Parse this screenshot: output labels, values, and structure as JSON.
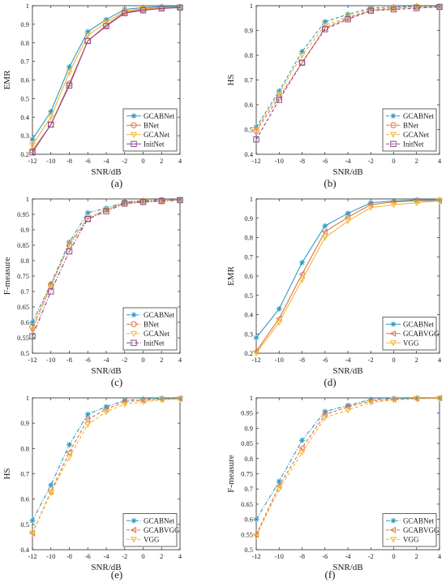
{
  "colors": {
    "GCABNet": "#2a9bc0",
    "BNet": "#e06f4a",
    "GCANet": "#f2b634",
    "InitNet": "#8a4a8e",
    "GCABVGG": "#e06f4a",
    "VGG": "#f2b634"
  },
  "chart_data": [
    {
      "type": "line",
      "panel_label": "(a)",
      "xlabel": "SNR/dB",
      "ylabel": "EMR",
      "xlim": [
        -12,
        4
      ],
      "ylim": [
        0.2,
        1.0
      ],
      "xticks": [
        -12,
        -10,
        -8,
        -6,
        -4,
        -2,
        0,
        2,
        4
      ],
      "yticks": [
        0.2,
        0.3,
        0.4,
        0.5,
        0.6,
        0.7,
        0.8,
        0.9,
        1
      ],
      "x": [
        -12,
        -10,
        -8,
        -6,
        -4,
        -2,
        0,
        2,
        4
      ],
      "legend_position": "bottom-right",
      "series": [
        {
          "name": "GCABNet",
          "marker": "star",
          "dash": "solid",
          "values": [
            0.28,
            0.43,
            0.67,
            0.86,
            0.925,
            0.98,
            0.99,
            0.995,
            0.995
          ]
        },
        {
          "name": "BNet",
          "marker": "circle",
          "dash": "solid",
          "values": [
            0.22,
            0.36,
            0.58,
            0.81,
            0.895,
            0.965,
            0.98,
            0.99,
            0.99
          ]
        },
        {
          "name": "GCANet",
          "marker": "triangle-down",
          "dash": "solid",
          "values": [
            0.25,
            0.4,
            0.64,
            0.84,
            0.91,
            0.97,
            0.985,
            0.99,
            0.99
          ]
        },
        {
          "name": "InitNet",
          "marker": "square",
          "dash": "solid",
          "values": [
            0.21,
            0.36,
            0.57,
            0.81,
            0.89,
            0.96,
            0.975,
            0.985,
            0.99
          ]
        }
      ]
    },
    {
      "type": "line",
      "panel_label": "(b)",
      "xlabel": "SNR/dB",
      "ylabel": "HS",
      "xlim": [
        -12,
        4
      ],
      "ylim": [
        0.4,
        1.0
      ],
      "xticks": [
        -12,
        -10,
        -8,
        -6,
        -4,
        -2,
        0,
        2,
        4
      ],
      "yticks": [
        0.4,
        0.5,
        0.6,
        0.7,
        0.8,
        0.9,
        1
      ],
      "x": [
        -12,
        -10,
        -8,
        -6,
        -4,
        -2,
        0,
        2,
        4
      ],
      "legend_position": "bottom-right",
      "series": [
        {
          "name": "GCABNet",
          "marker": "star",
          "dash": "dash",
          "values": [
            0.51,
            0.655,
            0.815,
            0.935,
            0.965,
            0.99,
            0.995,
            0.998,
            0.998
          ]
        },
        {
          "name": "BNet",
          "marker": "circle",
          "dash": "dash",
          "values": [
            0.495,
            0.63,
            0.77,
            0.91,
            0.95,
            0.98,
            0.99,
            0.995,
            0.995
          ]
        },
        {
          "name": "GCANet",
          "marker": "triangle-down",
          "dash": "dash",
          "values": [
            0.5,
            0.645,
            0.8,
            0.92,
            0.955,
            0.985,
            0.99,
            0.995,
            0.995
          ]
        },
        {
          "name": "InitNet",
          "marker": "square",
          "dash": "dash",
          "values": [
            0.46,
            0.62,
            0.77,
            0.905,
            0.945,
            0.98,
            0.985,
            0.99,
            0.995
          ]
        }
      ]
    },
    {
      "type": "line",
      "panel_label": "(c)",
      "xlabel": "SNR/dB",
      "ylabel": "F-measure",
      "xlim": [
        -12,
        4
      ],
      "ylim": [
        0.5,
        1.0
      ],
      "xticks": [
        -12,
        -10,
        -8,
        -6,
        -4,
        -2,
        0,
        2,
        4
      ],
      "yticks": [
        0.5,
        0.55,
        0.6,
        0.65,
        0.7,
        0.75,
        0.8,
        0.85,
        0.9,
        0.95,
        1
      ],
      "x": [
        -12,
        -10,
        -8,
        -6,
        -4,
        -2,
        0,
        2,
        4
      ],
      "legend_position": "bottom-right",
      "series": [
        {
          "name": "GCABNet",
          "marker": "star",
          "dash": "dashdot",
          "values": [
            0.6,
            0.725,
            0.86,
            0.955,
            0.97,
            0.99,
            0.995,
            0.998,
            0.998
          ]
        },
        {
          "name": "BNet",
          "marker": "circle",
          "dash": "dashdot",
          "values": [
            0.585,
            0.72,
            0.85,
            0.935,
            0.965,
            0.988,
            0.993,
            0.995,
            0.997
          ]
        },
        {
          "name": "GCANet",
          "marker": "triangle-down",
          "dash": "dashdot",
          "values": [
            0.575,
            0.715,
            0.855,
            0.94,
            0.965,
            0.985,
            0.99,
            0.995,
            0.997
          ]
        },
        {
          "name": "InitNet",
          "marker": "square",
          "dash": "dashdot",
          "values": [
            0.555,
            0.7,
            0.83,
            0.935,
            0.96,
            0.985,
            0.99,
            0.993,
            0.996
          ]
        }
      ]
    },
    {
      "type": "line",
      "panel_label": "(d)",
      "xlabel": "SNR/dB",
      "ylabel": "EMR",
      "xlim": [
        -12,
        4
      ],
      "ylim": [
        0.2,
        1.0
      ],
      "xticks": [
        -12,
        -10,
        -8,
        -6,
        -4,
        -2,
        0,
        2,
        4
      ],
      "yticks": [
        0.2,
        0.3,
        0.4,
        0.5,
        0.6,
        0.7,
        0.8,
        0.9,
        1
      ],
      "x": [
        -12,
        -10,
        -8,
        -6,
        -4,
        -2,
        0,
        2,
        4
      ],
      "legend_position": "bottom-right",
      "series": [
        {
          "name": "GCABNet",
          "marker": "star",
          "dash": "solid",
          "values": [
            0.28,
            0.43,
            0.67,
            0.86,
            0.925,
            0.98,
            0.99,
            0.995,
            0.995
          ]
        },
        {
          "name": "GCABVGG",
          "marker": "triangle-left",
          "dash": "solid",
          "values": [
            0.21,
            0.38,
            0.61,
            0.83,
            0.905,
            0.97,
            0.985,
            0.99,
            0.99
          ]
        },
        {
          "name": "VGG",
          "marker": "triangle-down",
          "dash": "solid",
          "values": [
            0.2,
            0.36,
            0.58,
            0.8,
            0.885,
            0.955,
            0.97,
            0.98,
            0.99
          ]
        }
      ]
    },
    {
      "type": "line",
      "panel_label": "(e)",
      "xlabel": "SNR/dB",
      "ylabel": "HS",
      "xlim": [
        -12,
        4
      ],
      "ylim": [
        0.4,
        1.0
      ],
      "xticks": [
        -12,
        -10,
        -8,
        -6,
        -4,
        -2,
        0,
        2,
        4
      ],
      "yticks": [
        0.4,
        0.5,
        0.6,
        0.7,
        0.8,
        0.9,
        1
      ],
      "x": [
        -12,
        -10,
        -8,
        -6,
        -4,
        -2,
        0,
        2,
        4
      ],
      "legend_position": "bottom-right",
      "series": [
        {
          "name": "GCABNet",
          "marker": "star",
          "dash": "dashdot",
          "values": [
            0.515,
            0.655,
            0.815,
            0.935,
            0.965,
            0.99,
            0.995,
            0.998,
            0.998
          ]
        },
        {
          "name": "GCABVGG",
          "marker": "triangle-left",
          "dash": "dash",
          "values": [
            0.465,
            0.63,
            0.785,
            0.915,
            0.955,
            0.985,
            0.99,
            0.995,
            0.997
          ]
        },
        {
          "name": "VGG",
          "marker": "triangle-down",
          "dash": "dash",
          "values": [
            0.465,
            0.625,
            0.765,
            0.895,
            0.945,
            0.975,
            0.985,
            0.992,
            0.995
          ]
        }
      ]
    },
    {
      "type": "line",
      "panel_label": "(f)",
      "xlabel": "SNR/dB",
      "ylabel": "F-measure",
      "xlim": [
        -12,
        4
      ],
      "ylim": [
        0.5,
        1.0
      ],
      "xticks": [
        -12,
        -10,
        -8,
        -6,
        -4,
        -2,
        0,
        2,
        4
      ],
      "yticks": [
        0.5,
        0.55,
        0.6,
        0.65,
        0.7,
        0.75,
        0.8,
        0.85,
        0.9,
        0.95,
        1
      ],
      "x": [
        -12,
        -10,
        -8,
        -6,
        -4,
        -2,
        0,
        2,
        4
      ],
      "legend_position": "bottom-right",
      "series": [
        {
          "name": "GCABNet",
          "marker": "star",
          "dash": "dashdot",
          "values": [
            0.6,
            0.725,
            0.86,
            0.955,
            0.975,
            0.995,
            0.998,
            0.999,
            0.999
          ]
        },
        {
          "name": "GCABVGG",
          "marker": "triangle-left",
          "dash": "dash",
          "values": [
            0.55,
            0.71,
            0.835,
            0.945,
            0.97,
            0.99,
            0.995,
            0.998,
            0.999
          ]
        },
        {
          "name": "VGG",
          "marker": "triangle-down",
          "dash": "dash",
          "values": [
            0.545,
            0.7,
            0.82,
            0.935,
            0.96,
            0.985,
            0.993,
            0.997,
            0.998
          ]
        }
      ]
    }
  ]
}
